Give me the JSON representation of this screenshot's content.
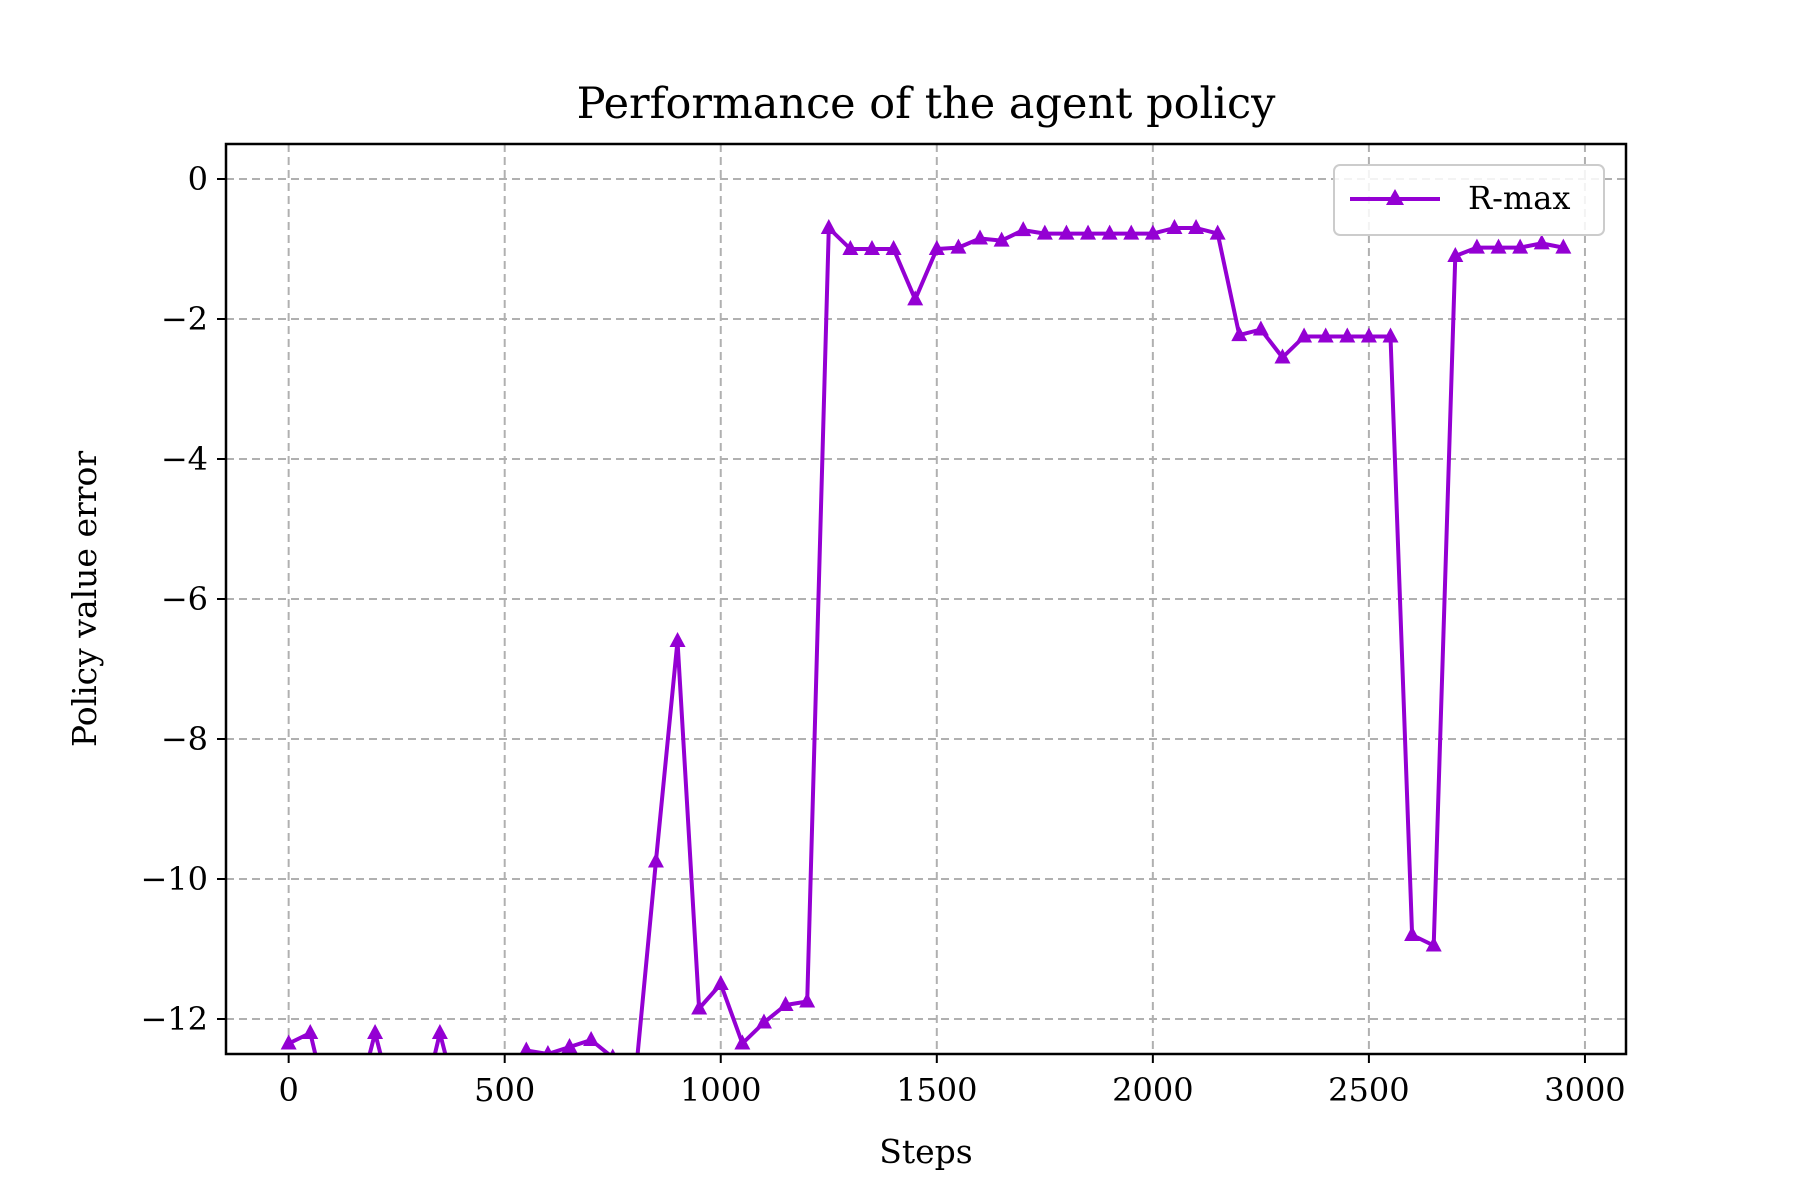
{
  "chart_data": {
    "type": "line",
    "title": "Performance of the agent policy",
    "xlabel": "Steps",
    "ylabel": "Policy value error",
    "xlim": [
      -145,
      3095
    ],
    "ylim": [
      -12.5,
      0.5
    ],
    "xticks": [
      0,
      500,
      1000,
      1500,
      2000,
      2500,
      3000
    ],
    "yticks": [
      0,
      -2,
      -4,
      -6,
      -8,
      -10,
      -12
    ],
    "xtick_labels": [
      "0",
      "500",
      "1000",
      "1500",
      "2000",
      "2500",
      "3000"
    ],
    "ytick_labels": [
      "0",
      "−2",
      "−4",
      "−6",
      "−8",
      "−10",
      "−12"
    ],
    "grid": true,
    "legend_position": "top-right",
    "series": [
      {
        "name": "R-max",
        "color": "#9400d3",
        "marker": "triangle-up",
        "x": [
          0,
          50,
          100,
          150,
          200,
          250,
          300,
          350,
          400,
          450,
          500,
          550,
          600,
          650,
          700,
          750,
          800,
          850,
          900,
          950,
          1000,
          1050,
          1100,
          1150,
          1200,
          1250,
          1300,
          1350,
          1400,
          1450,
          1500,
          1550,
          1600,
          1650,
          1700,
          1750,
          1800,
          1850,
          1900,
          1950,
          2000,
          2050,
          2100,
          2150,
          2200,
          2250,
          2300,
          2350,
          2400,
          2450,
          2500,
          2550,
          2600,
          2650,
          2700,
          2750,
          2800,
          2850,
          2900,
          2950
        ],
        "y": [
          -12.35,
          -12.2,
          -13.5,
          -13.4,
          -12.2,
          -13.4,
          -13.5,
          -12.2,
          -13.4,
          -13.5,
          -13.3,
          -12.45,
          -12.5,
          -12.4,
          -12.3,
          -12.55,
          -13.0,
          -9.75,
          -6.6,
          -11.85,
          -11.5,
          -12.35,
          -12.05,
          -11.8,
          -11.75,
          -0.7,
          -1.0,
          -1.0,
          -1.0,
          -1.72,
          -1.0,
          -0.98,
          -0.85,
          -0.88,
          -0.73,
          -0.78,
          -0.78,
          -0.78,
          -0.78,
          -0.78,
          -0.78,
          -0.7,
          -0.7,
          -0.78,
          -2.23,
          -2.15,
          -2.55,
          -2.25,
          -2.25,
          -2.25,
          -2.25,
          -2.25,
          -10.8,
          -10.95,
          -1.1,
          -0.98,
          -0.98,
          -0.98,
          -0.92,
          -0.98
        ]
      }
    ]
  }
}
